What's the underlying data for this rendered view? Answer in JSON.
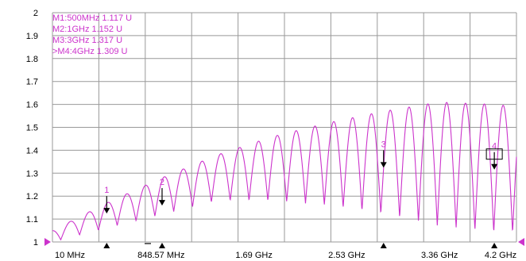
{
  "chart_data": {
    "type": "line",
    "title": "",
    "xlabel": "",
    "ylabel": "",
    "xlim_ghz": [
      0.01,
      4.2
    ],
    "ylim": [
      1,
      2
    ],
    "grid": true,
    "y_ticks": [
      "2",
      "1.9",
      "1.8",
      "1.7",
      "1.6",
      "1.5",
      "1.4",
      "1.3",
      "1.2",
      "1.1",
      "1"
    ],
    "x_ticks": [
      "10 MHz",
      "848.57 MHz",
      "1.69 GHz",
      "2.53 GHz",
      "3.36 GHz",
      "4.2 GHz"
    ],
    "markers": [
      {
        "id": "1",
        "label": "M1:500MHz 1.117 U",
        "freq_ghz": 0.5,
        "value": 1.117
      },
      {
        "id": "2",
        "label": "M2:1GHz 1.152 U",
        "freq_ghz": 1.0,
        "value": 1.152
      },
      {
        "id": "3",
        "label": "M3:3GHz 1.317 U",
        "freq_ghz": 3.0,
        "value": 1.317
      },
      {
        "id": "4",
        "label": ">M4:4GHz 1.309 U",
        "freq_ghz": 4.0,
        "value": 1.309,
        "active": true
      }
    ],
    "series": [
      {
        "trace_color": "#cc33cc",
        "ripple_period_ghz": 0.17,
        "envelope": {
          "freq_ghz": [
            0.01,
            0.5,
            1.0,
            1.5,
            2.0,
            2.5,
            3.0,
            3.5,
            4.0,
            4.2
          ],
          "upper": [
            1.05,
            1.17,
            1.28,
            1.38,
            1.46,
            1.52,
            1.57,
            1.61,
            1.6,
            1.59
          ],
          "lower": [
            1.0,
            1.06,
            1.12,
            1.18,
            1.18,
            1.16,
            1.12,
            1.07,
            1.04,
            1.04
          ]
        }
      }
    ],
    "colors": {
      "grid": "#999999",
      "axis_text": "#000000",
      "marker_text": "#cc33cc",
      "reference_arrow": "#cc33cc"
    }
  }
}
